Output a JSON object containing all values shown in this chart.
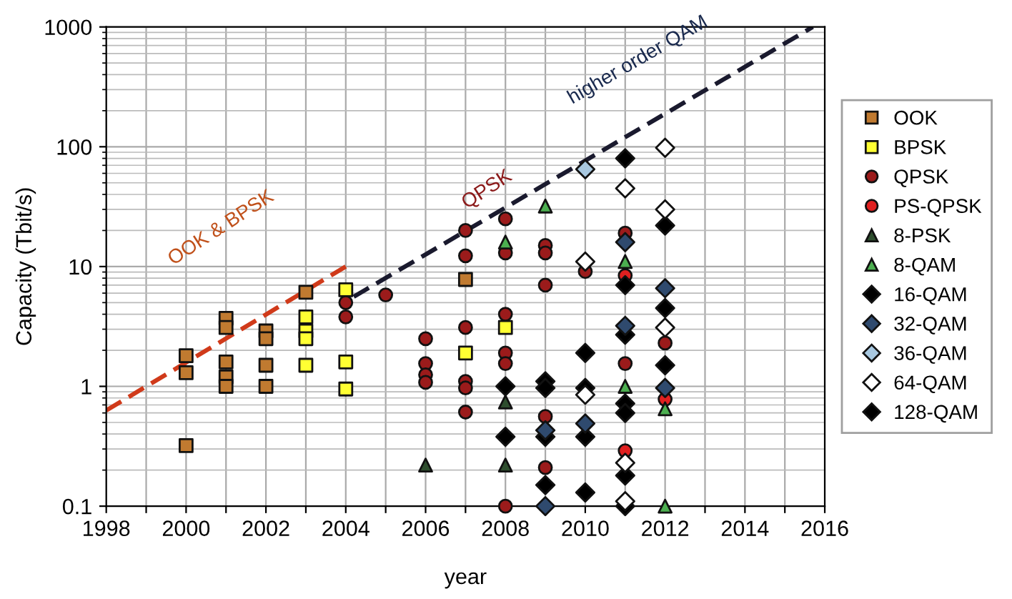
{
  "chart_data": {
    "type": "scatter",
    "xlabel": "year",
    "ylabel": "Capacity (Tbit/s)",
    "log": "y",
    "grid": true,
    "legend": "right",
    "xlim": [
      1998,
      2016
    ],
    "xticks": [
      1998,
      {
        "value": 1999,
        "label": null
      },
      2000,
      {
        "value": 2001,
        "label": null
      },
      2002,
      {
        "value": 2003,
        "label": null
      },
      2004,
      {
        "value": 2005,
        "label": null
      },
      2006,
      {
        "value": 2007,
        "label": null
      },
      2008,
      {
        "value": 2009,
        "label": null
      },
      2010,
      {
        "value": 2011,
        "label": null
      },
      2012,
      {
        "value": 2013,
        "label": null
      },
      2014,
      {
        "value": 2015,
        "label": null
      },
      2016
    ],
    "ylim": [
      0.1,
      1000
    ],
    "yticks": [
      0.1,
      1,
      10,
      100,
      1000
    ],
    "annotations": [
      "OOK & BPSK",
      "QPSK",
      "higher order QAM"
    ],
    "series": [
      {
        "name": "OOK",
        "color": "#c07a30",
        "marker": "square",
        "x": [
          2000,
          2000,
          2000,
          2001,
          2001,
          2001,
          2001,
          2001,
          2002,
          2002,
          2002,
          2002,
          2003,
          2007
        ],
        "values": [
          1.8,
          1.3,
          0.32,
          3.7,
          3.1,
          1.6,
          1.2,
          1.0,
          2.9,
          2.5,
          1.5,
          1.0,
          6.1,
          7.8
        ]
      },
      {
        "name": "BPSK",
        "color": "#ffff33",
        "marker": "square",
        "x": [
          2003,
          2003,
          2003,
          2003,
          2004,
          2004,
          2004,
          2007,
          2008
        ],
        "values": [
          3.8,
          2.9,
          2.5,
          1.5,
          6.4,
          1.6,
          0.95,
          1.9,
          3.1
        ]
      },
      {
        "name": "QPSK",
        "color": "#9b1b1b",
        "marker": "circle",
        "x": [
          2004,
          2004,
          2005,
          2006,
          2006,
          2006,
          2006,
          2007,
          2007,
          2007,
          2007,
          2007,
          2007,
          2008,
          2008,
          2008,
          2008,
          2008,
          2008,
          2009,
          2009,
          2009,
          2009,
          2009,
          2010,
          2011,
          2011,
          2012
        ],
        "values": [
          5.0,
          3.8,
          5.8,
          2.5,
          1.55,
          1.25,
          1.08,
          20,
          12.3,
          3.1,
          1.1,
          0.97,
          0.61,
          25,
          13,
          4.0,
          1.9,
          1.55,
          0.1,
          15,
          13,
          7.0,
          0.56,
          0.21,
          9.1,
          19,
          1.55,
          2.3
        ]
      },
      {
        "name": "PS-QPSK",
        "color": "#e02020",
        "marker": "circle",
        "x": [
          2011,
          2011,
          2012
        ],
        "values": [
          8.4,
          0.29,
          0.78
        ]
      },
      {
        "name": "8-PSK",
        "color": "#2e4e2e",
        "marker": "triangle",
        "x": [
          2006,
          2008,
          2008
        ],
        "values": [
          0.22,
          0.74,
          0.22
        ]
      },
      {
        "name": "8-QAM",
        "color": "#4caf50",
        "marker": "triangle",
        "x": [
          2008,
          2009,
          2011,
          2011,
          2012,
          2012
        ],
        "values": [
          16,
          32,
          11,
          1.0,
          0.65,
          0.1
        ]
      },
      {
        "name": "16-QAM",
        "color": "#000000",
        "marker": "diamond",
        "x": [
          2008,
          2008,
          2009,
          2009,
          2009,
          2009,
          2010,
          2010,
          2010,
          2010,
          2011,
          2011,
          2011,
          2011,
          2011,
          2011,
          2012,
          2012,
          2012
        ],
        "values": [
          1.0,
          0.38,
          1.1,
          0.97,
          0.38,
          0.15,
          1.9,
          0.97,
          0.38,
          0.13,
          7.0,
          2.7,
          0.72,
          0.6,
          0.18,
          0.1,
          22,
          4.5,
          1.5
        ]
      },
      {
        "name": "32-QAM",
        "color": "#2f4a6e",
        "marker": "diamond",
        "x": [
          2009,
          2009,
          2010,
          2011,
          2011,
          2012,
          2012
        ],
        "values": [
          0.43,
          0.1,
          0.49,
          16,
          3.2,
          6.6,
          0.97
        ]
      },
      {
        "name": "36-QAM",
        "color": "#a8c8e0",
        "marker": "diamond",
        "x": [
          2010
        ],
        "values": [
          65
        ]
      },
      {
        "name": "64-QAM",
        "color": "#ffffff",
        "marker": "diamond",
        "x": [
          2010,
          2010,
          2011,
          2011,
          2011,
          2012,
          2012,
          2012
        ],
        "values": [
          11,
          0.85,
          45,
          0.23,
          0.11,
          98,
          30,
          3.1
        ]
      },
      {
        "name": "128-QAM",
        "color": "#000000",
        "marker": "diamond",
        "x": [
          2011
        ],
        "values": [
          80
        ]
      },
      {
        "type": "line",
        "color": "#d03a1a",
        "line_style": "dashed",
        "x": [
          1998,
          2004
        ],
        "values": [
          0.63,
          10
        ]
      },
      {
        "type": "line",
        "color": "#1a1a2e",
        "line_style": "dashed",
        "x": [
          2004.2,
          2015.7
        ],
        "values": [
          5.6,
          1000
        ]
      }
    ]
  }
}
